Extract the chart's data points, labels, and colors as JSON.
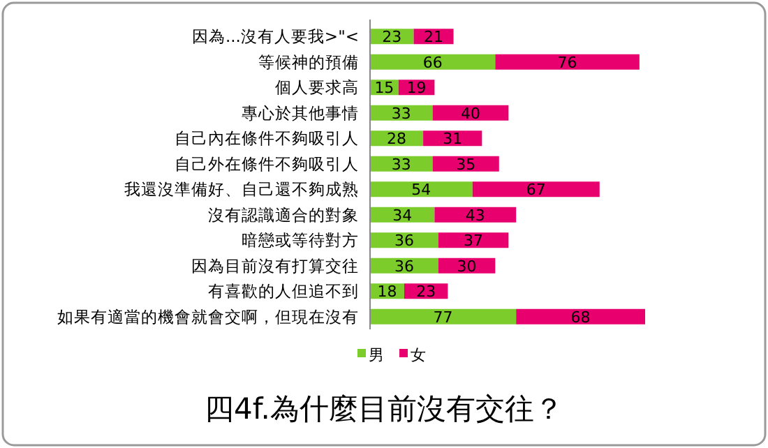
{
  "chart_data": {
    "type": "bar",
    "orientation": "horizontal",
    "stacked": true,
    "data_labels": true,
    "legend": "bottom",
    "title": "四4f.為什麼目前沒有交往？",
    "categories": [
      "因為...沒有人要我>\"<",
      "等候神的預備",
      "個人要求高",
      "專心於其他事情",
      "自己內在條件不夠吸引人",
      "自己外在條件不夠吸引人",
      "我還沒準備好、自己還不夠成熟",
      "沒有認識適合的對象",
      "暗戀或等待對方",
      "因為目前沒有打算交往",
      "有喜歡的人但追不到",
      "如果有適當的機會就會交啊，但現在沒有"
    ],
    "series": [
      {
        "name": "男",
        "color": "#7ccc2c",
        "values": [
          23,
          66,
          15,
          33,
          28,
          33,
          54,
          34,
          36,
          36,
          18,
          77
        ]
      },
      {
        "name": "女",
        "color": "#e8006f",
        "values": [
          21,
          76,
          19,
          40,
          31,
          35,
          67,
          43,
          37,
          30,
          23,
          68
        ]
      }
    ]
  }
}
